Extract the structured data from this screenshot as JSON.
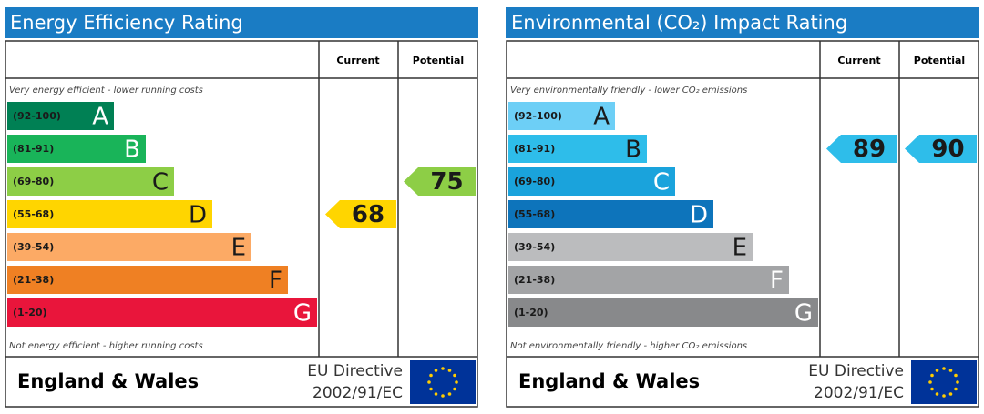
{
  "panels": [
    {
      "title": "Energy Efficiency Rating",
      "header_current": "Current",
      "header_potential": "Potential",
      "top_note": "Very energy efficient - lower running costs",
      "bottom_note": "Not energy efficient - higher running costs",
      "bands": [
        {
          "range": "(92-100)",
          "letter": "A",
          "color": "#008054",
          "text_color": "#ffffff"
        },
        {
          "range": "(81-91)",
          "letter": "B",
          "color": "#19b459",
          "text_color": "#ffffff"
        },
        {
          "range": "(69-80)",
          "letter": "C",
          "color": "#8dce46",
          "text_color": "#1a1a1a"
        },
        {
          "range": "(55-68)",
          "letter": "D",
          "color": "#ffd500",
          "text_color": "#1a1a1a"
        },
        {
          "range": "(39-54)",
          "letter": "E",
          "color": "#fcaa65",
          "text_color": "#1a1a1a"
        },
        {
          "range": "(21-38)",
          "letter": "F",
          "color": "#ef8023",
          "text_color": "#1a1a1a"
        },
        {
          "range": "(1-20)",
          "letter": "G",
          "color": "#e9153b",
          "text_color": "#ffffff"
        }
      ],
      "current": 68,
      "potential": 75,
      "region": "England & Wales",
      "directive_line1": "EU Directive",
      "directive_line2": "2002/91/EC"
    },
    {
      "title": "Environmental (CO₂) Impact Rating",
      "header_current": "Current",
      "header_potential": "Potential",
      "top_note": "Very environmentally friendly - lower CO₂ emissions",
      "bottom_note": "Not environmentally friendly - higher CO₂ emissions",
      "bands": [
        {
          "range": "(92-100)",
          "letter": "A",
          "color": "#6dcff6",
          "text_color": "#1a1a1a"
        },
        {
          "range": "(81-91)",
          "letter": "B",
          "color": "#2ebdea",
          "text_color": "#1a1a1a"
        },
        {
          "range": "(69-80)",
          "letter": "C",
          "color": "#1aa3dc",
          "text_color": "#ffffff"
        },
        {
          "range": "(55-68)",
          "letter": "D",
          "color": "#0d74bb",
          "text_color": "#ffffff"
        },
        {
          "range": "(39-54)",
          "letter": "E",
          "color": "#bbbcbe",
          "text_color": "#1a1a1a"
        },
        {
          "range": "(21-38)",
          "letter": "F",
          "color": "#a3a4a6",
          "text_color": "#ffffff"
        },
        {
          "range": "(1-20)",
          "letter": "G",
          "color": "#88898b",
          "text_color": "#ffffff"
        }
      ],
      "current": 89,
      "potential": 90,
      "region": "England & Wales",
      "directive_line1": "EU Directive",
      "directive_line2": "2002/91/EC"
    }
  ]
}
